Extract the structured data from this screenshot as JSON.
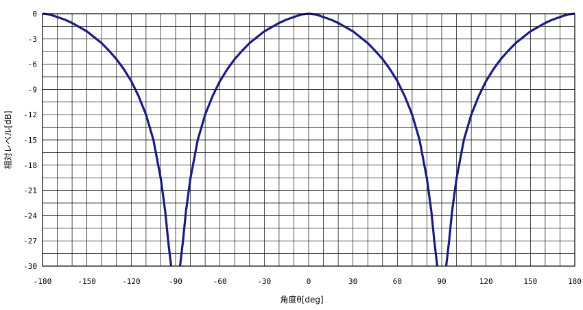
{
  "chart_data": {
    "type": "line",
    "title": "",
    "xlabel": "角度θ[deg]",
    "ylabel": "相対レベル[dB]",
    "xlim": [
      -180,
      180
    ],
    "ylim": [
      -30,
      0
    ],
    "xticks": [
      -180,
      -150,
      -120,
      -90,
      -60,
      -30,
      0,
      30,
      60,
      90,
      120,
      150,
      180
    ],
    "yticks": [
      0,
      -3,
      -6,
      -9,
      -12,
      -15,
      -18,
      -21,
      -24,
      -27,
      -30
    ],
    "xtick_labels": [
      "-180",
      "-150",
      "-120",
      "-90",
      "-60",
      "-30",
      "0",
      "30",
      "60",
      "90",
      "120",
      "150",
      "180"
    ],
    "ytick_labels": [
      "0",
      "-3",
      "-6",
      "-9",
      "-12",
      "-15",
      "-18",
      "-21",
      "-24",
      "-27",
      "-30"
    ],
    "grid": true,
    "minor_grid_x_step": 10,
    "minor_grid_y_step": 1.5,
    "line_color": "#1a1a80",
    "series": [
      {
        "x": [
          -180,
          -175,
          -170,
          -165,
          -160,
          -155,
          -150,
          -145,
          -140,
          -135,
          -130,
          -125,
          -120,
          -115,
          -110,
          -105,
          -100,
          -97,
          -95,
          -93
        ],
        "y": [
          0,
          -0.1,
          -0.4,
          -0.7,
          -1.1,
          -1.6,
          -2.1,
          -2.8,
          -3.5,
          -4.4,
          -5.4,
          -6.6,
          -8.0,
          -9.8,
          -12.0,
          -15.0,
          -19.6,
          -23.5,
          -27.0,
          -30
        ]
      },
      {
        "x": [
          -87,
          -85,
          -83,
          -80,
          -75,
          -70,
          -65,
          -60,
          -55,
          -50,
          -45,
          -40,
          -35,
          -30,
          -25,
          -20,
          -15,
          -10,
          -5,
          0,
          5,
          10,
          15,
          20,
          25,
          30,
          35,
          40,
          45,
          50,
          55,
          60,
          65,
          70,
          75,
          80,
          83,
          85,
          87
        ],
        "y": [
          -30,
          -27.0,
          -23.5,
          -19.6,
          -15.0,
          -12.0,
          -9.8,
          -8.0,
          -6.6,
          -5.4,
          -4.4,
          -3.5,
          -2.8,
          -2.1,
          -1.6,
          -1.1,
          -0.7,
          -0.4,
          -0.1,
          0,
          -0.1,
          -0.4,
          -0.7,
          -1.1,
          -1.6,
          -2.1,
          -2.8,
          -3.5,
          -4.4,
          -5.4,
          -6.6,
          -8.0,
          -9.8,
          -12.0,
          -15.0,
          -19.6,
          -23.5,
          -27.0,
          -30
        ]
      },
      {
        "x": [
          93,
          95,
          97,
          100,
          105,
          110,
          115,
          120,
          125,
          130,
          135,
          140,
          145,
          150,
          155,
          160,
          165,
          170,
          175,
          180
        ],
        "y": [
          -30,
          -27.0,
          -23.5,
          -19.6,
          -15.0,
          -12.0,
          -9.8,
          -8.0,
          -6.6,
          -5.4,
          -4.4,
          -3.5,
          -2.8,
          -2.1,
          -1.6,
          -1.1,
          -0.7,
          -0.4,
          -0.1,
          0
        ]
      }
    ]
  }
}
